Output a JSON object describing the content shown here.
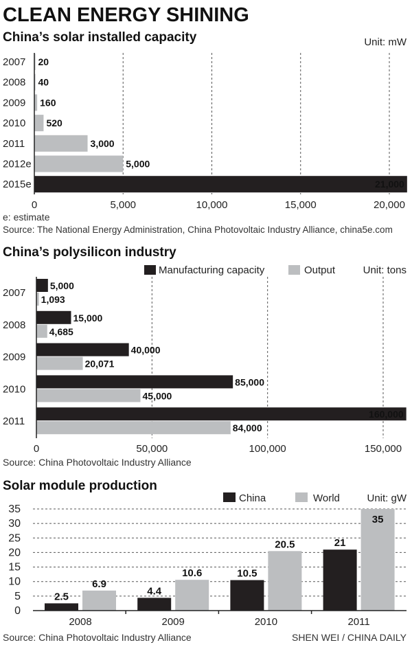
{
  "title": "CLEAN ENERGY SHINING",
  "credit": "SHEN WEI / CHINA DAILY",
  "colors": {
    "dark": "#231f20",
    "gray": "#bcbec0"
  },
  "chart_data": [
    {
      "type": "bar",
      "orientation": "horizontal",
      "title": "China’s solar installed capacity",
      "unit": "Unit: mW",
      "categories": [
        "2007",
        "2008",
        "2009",
        "2010",
        "2011",
        "2012e",
        "2015e"
      ],
      "values": [
        20,
        40,
        160,
        520,
        3000,
        5000,
        21000
      ],
      "value_labels": [
        "20",
        "40",
        "160",
        "520",
        "3,000",
        "5,000",
        "21,000"
      ],
      "bar_colors": [
        "gray",
        "gray",
        "gray",
        "gray",
        "gray",
        "gray",
        "dark"
      ],
      "xlim": [
        0,
        21000
      ],
      "ticks": [
        0,
        5000,
        10000,
        15000,
        20000
      ],
      "tick_labels": [
        "0",
        "5,000",
        "10,000",
        "15,000",
        "20,000"
      ],
      "grid": true,
      "note": "e: estimate",
      "source": "Source: The National Energy Administration, China Photovoltaic Industry Alliance, china5e.com"
    },
    {
      "type": "bar",
      "orientation": "horizontal",
      "title": "China’s polysilicon industry",
      "unit": "Unit: tons",
      "legend_placement": "top-right",
      "categories": [
        "2007",
        "2008",
        "2009",
        "2010",
        "2011"
      ],
      "series": [
        {
          "name": "Manufacturing capacity",
          "color": "dark",
          "values": [
            5000,
            15000,
            40000,
            85000,
            160000
          ],
          "value_labels": [
            "5,000",
            "15,000",
            "40,000",
            "85,000",
            "160,000"
          ]
        },
        {
          "name": "Output",
          "color": "gray",
          "values": [
            1093,
            4685,
            20071,
            45000,
            84000
          ],
          "value_labels": [
            "1,093",
            "4,685",
            "20,071",
            "45,000",
            "84,000"
          ]
        }
      ],
      "xlim": [
        0,
        160000
      ],
      "ticks": [
        0,
        50000,
        100000,
        150000
      ],
      "tick_labels": [
        "0",
        "50,000",
        "100,000",
        "150,000"
      ],
      "grid": true,
      "source": "Source: China Photovoltaic Industry Alliance"
    },
    {
      "type": "bar",
      "orientation": "vertical",
      "title": "Solar module production",
      "unit": "Unit: gW",
      "legend_placement": "top-right",
      "categories": [
        "2008",
        "2009",
        "2010",
        "2011"
      ],
      "series": [
        {
          "name": "China",
          "color": "dark",
          "values": [
            2.5,
            4.4,
            10.5,
            21
          ],
          "value_labels": [
            "2.5",
            "4.4",
            "10.5",
            "21"
          ]
        },
        {
          "name": "World",
          "color": "gray",
          "values": [
            6.9,
            10.6,
            20.5,
            35
          ],
          "value_labels": [
            "6.9",
            "10.6",
            "20.5",
            "35"
          ]
        }
      ],
      "ylim": [
        0,
        35
      ],
      "ticks": [
        0,
        5,
        10,
        15,
        20,
        25,
        30,
        35
      ],
      "tick_labels": [
        "0",
        "5",
        "10",
        "15",
        "20",
        "25",
        "30",
        "35"
      ],
      "grid": true,
      "source": "Source: China Photovoltaic Industry Alliance"
    }
  ]
}
